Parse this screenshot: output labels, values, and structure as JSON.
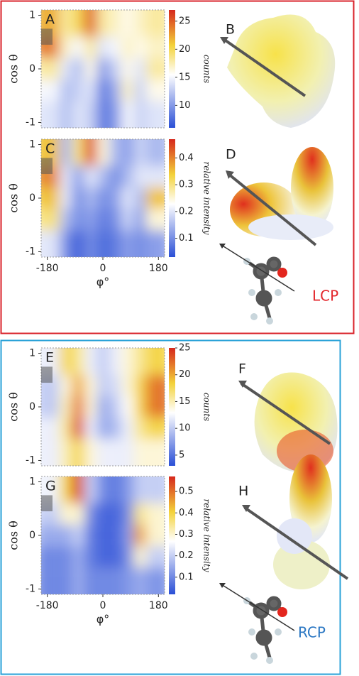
{
  "chart_data": [
    {
      "type": "heatmap",
      "panel_label": "A",
      "ylabel": "cos θ",
      "colorbar_label": "counts",
      "x": [
        -160,
        -120,
        -80,
        -40,
        0,
        40,
        80,
        120,
        160
      ],
      "y": [
        0.8,
        0.4,
        0,
        -0.4,
        -0.8
      ],
      "z": [
        [
          22,
          18,
          20,
          25,
          18,
          17,
          16,
          17,
          18
        ],
        [
          24,
          17,
          15,
          18,
          14,
          15,
          17,
          16,
          17
        ],
        [
          18,
          14,
          12,
          16,
          10,
          13,
          16,
          14,
          18
        ],
        [
          15,
          12,
          13,
          14,
          8,
          11,
          17,
          13,
          16
        ],
        [
          14,
          12,
          14,
          13,
          8,
          10,
          15,
          13,
          14
        ]
      ],
      "xlim": [
        -200,
        200
      ],
      "ylim": [
        -1.1,
        1.1
      ],
      "yticks": [
        -1,
        0,
        1
      ],
      "zlim": [
        6,
        27
      ],
      "zticks": [
        10,
        15,
        20,
        25
      ],
      "colors": [
        "#2a4fd6",
        "#ffffff",
        "#f3d23a",
        "#d6281c"
      ]
    },
    {
      "type": "heatmap",
      "panel_label": "C",
      "ylabel": "cos θ",
      "xlabel": "φ°",
      "colorbar_label": "relative intensity",
      "x": [
        -160,
        -120,
        -80,
        -40,
        0,
        40,
        80,
        120,
        160
      ],
      "y": [
        0.8,
        0.4,
        0,
        -0.4,
        -0.8
      ],
      "z": [
        [
          0.35,
          0.15,
          0.3,
          0.45,
          0.25,
          0.15,
          0.12,
          0.18,
          0.15
        ],
        [
          0.4,
          0.2,
          0.12,
          0.2,
          0.15,
          0.1,
          0.15,
          0.2,
          0.2
        ],
        [
          0.35,
          0.2,
          0.1,
          0.15,
          0.1,
          0.12,
          0.2,
          0.15,
          0.35
        ],
        [
          0.3,
          0.15,
          0.1,
          0.12,
          0.08,
          0.1,
          0.18,
          0.12,
          0.25
        ],
        [
          0.2,
          0.1,
          0.05,
          0.1,
          0.06,
          0.08,
          0.12,
          0.1,
          0.12
        ]
      ],
      "xlim": [
        -200,
        200
      ],
      "ylim": [
        -1.1,
        1.1
      ],
      "xticks": [
        -180,
        0,
        180
      ],
      "yticks": [
        -1,
        0,
        1
      ],
      "zlim": [
        0.03,
        0.47
      ],
      "zticks": [
        0.1,
        0.2,
        0.3,
        0.4
      ],
      "colors": [
        "#2a4fd6",
        "#ffffff",
        "#f3d23a",
        "#d6281c"
      ]
    },
    {
      "type": "heatmap",
      "panel_label": "E",
      "ylabel": "cos θ",
      "colorbar_label": "counts",
      "x": [
        -160,
        -120,
        -80,
        -40,
        0,
        40,
        80,
        120,
        160
      ],
      "y": [
        0.8,
        0.4,
        0,
        -0.4,
        -0.8
      ],
      "z": [
        [
          12,
          18,
          16,
          12,
          10,
          12,
          14,
          16,
          18
        ],
        [
          10,
          14,
          20,
          14,
          10,
          11,
          14,
          18,
          22
        ],
        [
          10,
          15,
          22,
          14,
          8,
          10,
          13,
          18,
          22
        ],
        [
          12,
          16,
          24,
          12,
          8,
          9,
          12,
          16,
          18
        ],
        [
          12,
          15,
          18,
          14,
          12,
          12,
          12,
          14,
          14
        ]
      ],
      "xlim": [
        -200,
        200
      ],
      "ylim": [
        -1.1,
        1.1
      ],
      "yticks": [
        -1,
        0,
        1
      ],
      "zlim": [
        3,
        25
      ],
      "zticks": [
        5,
        10,
        15,
        20,
        25
      ],
      "colors": [
        "#2a4fd6",
        "#ffffff",
        "#f3d23a",
        "#d6281c"
      ]
    },
    {
      "type": "heatmap",
      "panel_label": "G",
      "ylabel": "cos θ",
      "xlabel": "φ°",
      "colorbar_label": "relative intensity",
      "x": [
        -160,
        -120,
        -80,
        -40,
        0,
        40,
        80,
        120,
        160
      ],
      "y": [
        0.8,
        0.4,
        0,
        -0.4,
        -0.8
      ],
      "z": [
        [
          0.25,
          0.4,
          0.55,
          0.2,
          0.1,
          0.08,
          0.12,
          0.2,
          0.2
        ],
        [
          0.2,
          0.3,
          0.3,
          0.1,
          0.05,
          0.05,
          0.1,
          0.35,
          0.3
        ],
        [
          0.15,
          0.15,
          0.2,
          0.08,
          0.05,
          0.05,
          0.12,
          0.45,
          0.3
        ],
        [
          0.1,
          0.1,
          0.15,
          0.08,
          0.05,
          0.05,
          0.1,
          0.3,
          0.2
        ],
        [
          0.1,
          0.1,
          0.15,
          0.1,
          0.1,
          0.1,
          0.12,
          0.15,
          0.12
        ]
      ],
      "xlim": [
        -200,
        200
      ],
      "ylim": [
        -1.1,
        1.1
      ],
      "xticks": [
        -180,
        0,
        180
      ],
      "yticks": [
        -1,
        0,
        1
      ],
      "zlim": [
        0.02,
        0.57
      ],
      "zticks": [
        0.1,
        0.2,
        0.3,
        0.4,
        0.5
      ],
      "colors": [
        "#2a4fd6",
        "#ffffff",
        "#f3d23a",
        "#d6281c"
      ]
    }
  ],
  "panels": {
    "B": "B",
    "D": "D",
    "F": "F",
    "H": "H",
    "lcp": "LCP",
    "rcp": "RCP"
  }
}
